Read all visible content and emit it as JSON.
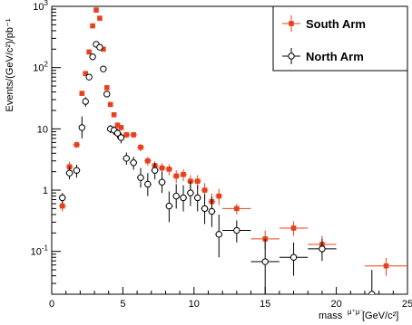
{
  "chart_data": {
    "type": "scatter",
    "title": "",
    "xlabel": "mass",
    "xlabel_sub": "μ⁺μ⁻",
    "xlabel_unit": "[GeV/c²]",
    "ylabel": "Events/(GeV/c²)/pb⁻¹",
    "xlim": [
      0,
      25
    ],
    "ylim": [
      0.02,
      1000
    ],
    "y_scale": "log",
    "grid": false,
    "legend_position": "top-right",
    "x_ticks": [
      {
        "value": 0,
        "label": "0"
      },
      {
        "value": 5,
        "label": "5"
      },
      {
        "value": 10,
        "label": "10"
      },
      {
        "value": 15,
        "label": "15"
      },
      {
        "value": 20,
        "label": "20"
      },
      {
        "value": 25,
        "label": "25"
      }
    ],
    "y_ticks": [
      {
        "value": 0.1,
        "base": "10",
        "exp": "-1"
      },
      {
        "value": 1,
        "base": "1",
        "exp": ""
      },
      {
        "value": 10,
        "base": "10",
        "exp": ""
      },
      {
        "value": 100,
        "base": "10",
        "exp": "2"
      },
      {
        "value": 1000,
        "base": "10",
        "exp": "3"
      }
    ],
    "series": [
      {
        "name": "South Arm",
        "color": "#e8401c",
        "marker": "square-filled",
        "points": [
          {
            "x": 0.75,
            "y": 0.55,
            "xerr": 0.25,
            "ylo": 0.45,
            "yhi": 0.66
          },
          {
            "x": 1.25,
            "y": 2.4,
            "xerr": 0.25,
            "ylo": 2.0,
            "yhi": 2.9
          },
          {
            "x": 1.75,
            "y": 5.5,
            "xerr": 0.25,
            "ylo": 4.9,
            "yhi": 6.2
          },
          {
            "x": 2.125,
            "y": 38,
            "xerr": 0.125,
            "ylo": 35,
            "yhi": 41
          },
          {
            "x": 2.375,
            "y": 80,
            "xerr": 0.125,
            "ylo": 76,
            "yhi": 85
          },
          {
            "x": 2.625,
            "y": 180,
            "xerr": 0.125,
            "ylo": 172,
            "yhi": 188
          },
          {
            "x": 2.875,
            "y": 480,
            "xerr": 0.125,
            "ylo": 466,
            "yhi": 494
          },
          {
            "x": 3.125,
            "y": 870,
            "xerr": 0.125,
            "ylo": 850,
            "yhi": 890
          },
          {
            "x": 3.375,
            "y": 640,
            "xerr": 0.125,
            "ylo": 622,
            "yhi": 658
          },
          {
            "x": 3.625,
            "y": 200,
            "xerr": 0.125,
            "ylo": 192,
            "yhi": 208
          },
          {
            "x": 3.875,
            "y": 47,
            "xerr": 0.125,
            "ylo": 44,
            "yhi": 50
          },
          {
            "x": 4.125,
            "y": 25,
            "xerr": 0.125,
            "ylo": 23,
            "yhi": 27
          },
          {
            "x": 4.375,
            "y": 17,
            "xerr": 0.125,
            "ylo": 15.5,
            "yhi": 18.5
          },
          {
            "x": 4.625,
            "y": 11.5,
            "xerr": 0.125,
            "ylo": 10.3,
            "yhi": 12.7
          },
          {
            "x": 4.875,
            "y": 10.5,
            "xerr": 0.125,
            "ylo": 9.4,
            "yhi": 11.6
          },
          {
            "x": 5.25,
            "y": 8,
            "xerr": 0.25,
            "ylo": 7.1,
            "yhi": 8.9
          },
          {
            "x": 5.75,
            "y": 8,
            "xerr": 0.25,
            "ylo": 7.1,
            "yhi": 8.9
          },
          {
            "x": 6.25,
            "y": 5,
            "xerr": 0.25,
            "ylo": 4.3,
            "yhi": 5.7
          },
          {
            "x": 6.75,
            "y": 3,
            "xerr": 0.25,
            "ylo": 2.5,
            "yhi": 3.5
          },
          {
            "x": 7.25,
            "y": 2.5,
            "xerr": 0.25,
            "ylo": 2.05,
            "yhi": 2.95
          },
          {
            "x": 7.75,
            "y": 2.3,
            "xerr": 0.25,
            "ylo": 1.85,
            "yhi": 2.75
          },
          {
            "x": 8.25,
            "y": 2.2,
            "xerr": 0.25,
            "ylo": 1.75,
            "yhi": 2.65
          },
          {
            "x": 8.75,
            "y": 1.7,
            "xerr": 0.25,
            "ylo": 1.3,
            "yhi": 2.1
          },
          {
            "x": 9.25,
            "y": 1.8,
            "xerr": 0.25,
            "ylo": 1.4,
            "yhi": 2.2
          },
          {
            "x": 9.75,
            "y": 1.4,
            "xerr": 0.25,
            "ylo": 1.05,
            "yhi": 1.75
          },
          {
            "x": 10.25,
            "y": 1.4,
            "xerr": 0.25,
            "ylo": 1.05,
            "yhi": 1.75
          },
          {
            "x": 10.75,
            "y": 1.0,
            "xerr": 0.25,
            "ylo": 0.72,
            "yhi": 1.3
          },
          {
            "x": 11.25,
            "y": 0.65,
            "xerr": 0.25,
            "ylo": 0.45,
            "yhi": 0.88
          },
          {
            "x": 11.75,
            "y": 0.8,
            "xerr": 0.25,
            "ylo": 0.57,
            "yhi": 1.05
          },
          {
            "x": 13.0,
            "y": 0.5,
            "xerr": 1.0,
            "ylo": 0.4,
            "yhi": 0.6
          },
          {
            "x": 15.0,
            "y": 0.16,
            "xerr": 1.0,
            "ylo": 0.11,
            "yhi": 0.22
          },
          {
            "x": 17.0,
            "y": 0.24,
            "xerr": 1.0,
            "ylo": 0.18,
            "yhi": 0.31
          },
          {
            "x": 19.0,
            "y": 0.13,
            "xerr": 1.0,
            "ylo": 0.09,
            "yhi": 0.18
          },
          {
            "x": 23.5,
            "y": 0.058,
            "xerr": 1.5,
            "ylo": 0.04,
            "yhi": 0.078
          }
        ]
      },
      {
        "name": "North Arm",
        "color": "#000000",
        "marker": "circle-open",
        "points": [
          {
            "x": 0.75,
            "y": 0.75,
            "xerr": 0.25,
            "ylo": 0.6,
            "yhi": 0.9
          },
          {
            "x": 1.25,
            "y": 1.9,
            "xerr": 0.25,
            "ylo": 1.5,
            "yhi": 2.4
          },
          {
            "x": 1.75,
            "y": 2.1,
            "xerr": 0.25,
            "ylo": 1.6,
            "yhi": 2.6
          },
          {
            "x": 2.125,
            "y": 10.5,
            "xerr": 0.125,
            "ylo": 7,
            "yhi": 16
          },
          {
            "x": 2.375,
            "y": 28,
            "xerr": 0.125,
            "ylo": 23,
            "yhi": 33
          },
          {
            "x": 2.625,
            "y": 70,
            "xerr": 0.125,
            "ylo": 62,
            "yhi": 78
          },
          {
            "x": 2.875,
            "y": 150,
            "xerr": 0.125,
            "ylo": 140,
            "yhi": 160
          },
          {
            "x": 3.125,
            "y": 240,
            "xerr": 0.125,
            "ylo": 226,
            "yhi": 254
          },
          {
            "x": 3.375,
            "y": 215,
            "xerr": 0.125,
            "ylo": 202,
            "yhi": 228
          },
          {
            "x": 3.625,
            "y": 95,
            "xerr": 0.125,
            "ylo": 87,
            "yhi": 103
          },
          {
            "x": 3.875,
            "y": 37,
            "xerr": 0.125,
            "ylo": 33,
            "yhi": 41
          },
          {
            "x": 4.125,
            "y": 10,
            "xerr": 0.125,
            "ylo": 8.5,
            "yhi": 11.5
          },
          {
            "x": 4.375,
            "y": 9.5,
            "xerr": 0.125,
            "ylo": 8,
            "yhi": 11
          },
          {
            "x": 4.625,
            "y": 8.5,
            "xerr": 0.125,
            "ylo": 7,
            "yhi": 10
          },
          {
            "x": 4.875,
            "y": 7.2,
            "xerr": 0.125,
            "ylo": 5.8,
            "yhi": 8.6
          },
          {
            "x": 5.25,
            "y": 3.3,
            "xerr": 0.25,
            "ylo": 2.6,
            "yhi": 4.1
          },
          {
            "x": 5.75,
            "y": 2.8,
            "xerr": 0.25,
            "ylo": 2.15,
            "yhi": 3.5
          },
          {
            "x": 6.25,
            "y": 1.6,
            "xerr": 0.25,
            "ylo": 1.1,
            "yhi": 2.3
          },
          {
            "x": 6.75,
            "y": 1.25,
            "xerr": 0.25,
            "ylo": 0.8,
            "yhi": 1.9
          },
          {
            "x": 7.25,
            "y": 2.1,
            "xerr": 0.25,
            "ylo": 1.5,
            "yhi": 2.8
          },
          {
            "x": 7.75,
            "y": 1.35,
            "xerr": 0.25,
            "ylo": 0.9,
            "yhi": 2.0
          },
          {
            "x": 8.25,
            "y": 0.55,
            "xerr": 0.25,
            "ylo": 0.3,
            "yhi": 0.95
          },
          {
            "x": 8.75,
            "y": 0.8,
            "xerr": 0.25,
            "ylo": 0.5,
            "yhi": 1.25
          },
          {
            "x": 9.25,
            "y": 0.75,
            "xerr": 0.25,
            "ylo": 0.45,
            "yhi": 1.2
          },
          {
            "x": 9.75,
            "y": 0.9,
            "xerr": 0.25,
            "ylo": 0.55,
            "yhi": 1.4
          },
          {
            "x": 10.25,
            "y": 0.75,
            "xerr": 0.25,
            "ylo": 0.45,
            "yhi": 1.2
          },
          {
            "x": 10.75,
            "y": 0.5,
            "xerr": 0.25,
            "ylo": 0.28,
            "yhi": 0.85
          },
          {
            "x": 11.25,
            "y": 0.45,
            "xerr": 0.25,
            "ylo": 0.25,
            "yhi": 0.78
          },
          {
            "x": 11.75,
            "y": 0.19,
            "xerr": 0.25,
            "ylo": 0.08,
            "yhi": 0.4
          },
          {
            "x": 13.0,
            "y": 0.22,
            "xerr": 1.0,
            "ylo": 0.14,
            "yhi": 0.32
          },
          {
            "x": 15.0,
            "y": 0.068,
            "xerr": 1.0,
            "ylo": 0.02,
            "yhi": 0.16
          },
          {
            "x": 17.0,
            "y": 0.08,
            "xerr": 1.0,
            "ylo": 0.04,
            "yhi": 0.14
          },
          {
            "x": 19.0,
            "y": 0.11,
            "xerr": 1.0,
            "ylo": 0.07,
            "yhi": 0.16
          },
          {
            "x": 22.5,
            "y": 0.02,
            "xerr": 0.5,
            "ylo": 0.02,
            "yhi": 0.05
          }
        ]
      }
    ]
  }
}
